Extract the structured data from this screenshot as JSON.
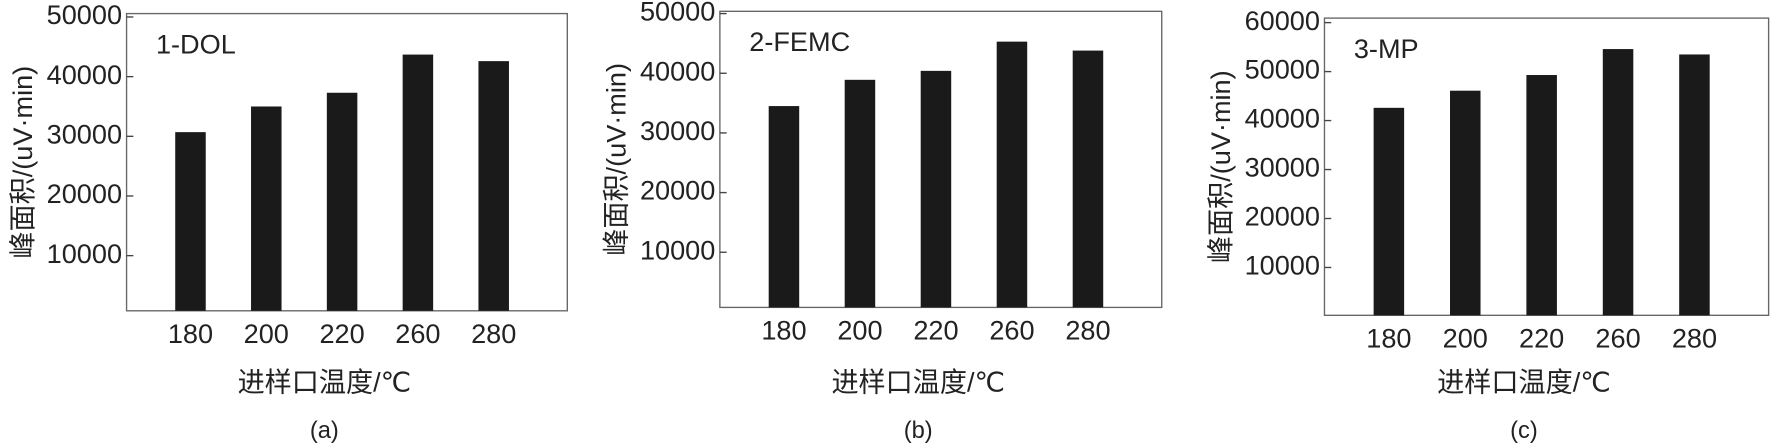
{
  "chart_data": [
    {
      "type": "bar",
      "annotation": "1-DOL",
      "ylabel": "峰面积/(uV·min)",
      "xlabel": "进样口温度/℃",
      "caption": "(a)",
      "categories": [
        "180",
        "200",
        "220",
        "260",
        "280"
      ],
      "values": [
        30700,
        35000,
        37300,
        43700,
        42600
      ],
      "color": "#1a1a1a",
      "ylim": [
        0,
        50000
      ],
      "yticks": [
        10000,
        20000,
        30000,
        40000,
        50000
      ]
    },
    {
      "type": "bar",
      "annotation": "2-FEMC",
      "ylabel": "峰面积/(uV·min)",
      "xlabel": "进样口温度/℃",
      "caption": "(b)",
      "categories": [
        "180",
        "200",
        "220",
        "260",
        "280"
      ],
      "values": [
        34500,
        38900,
        40400,
        45300,
        43800
      ],
      "color": "#1a1a1a",
      "ylim": [
        0,
        50000
      ],
      "yticks": [
        10000,
        20000,
        30000,
        40000,
        50000
      ]
    },
    {
      "type": "bar",
      "annotation": "3-MP",
      "ylabel": "峰面积/(uV·min)",
      "xlabel": "进样口温度/℃",
      "caption": "(c)",
      "categories": [
        "180",
        "200",
        "220",
        "260",
        "280"
      ],
      "values": [
        42600,
        46100,
        49300,
        54600,
        53500
      ],
      "color": "#1a1a1a",
      "ylim": [
        0,
        60000
      ],
      "yticks": [
        10000,
        20000,
        30000,
        40000,
        50000,
        60000
      ]
    }
  ]
}
